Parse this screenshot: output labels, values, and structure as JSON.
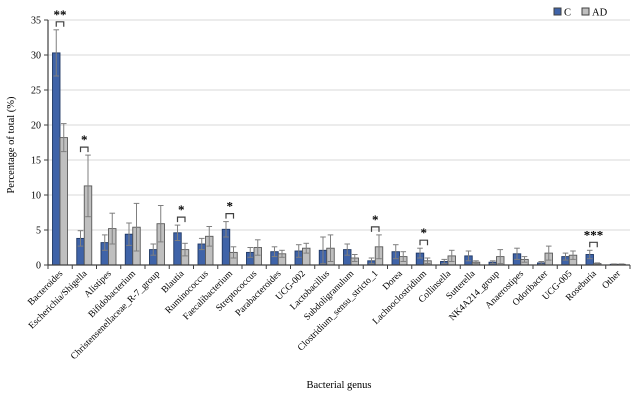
{
  "figure": {
    "background": "#ffffff",
    "gridline_color": "#d9d9d9",
    "axis_color": "#404040",
    "error_bar_color": "#7f7f7f",
    "bracket_color": "#404040"
  },
  "legend": {
    "items": [
      {
        "label": "C",
        "swatch_color": "#3f63a8"
      },
      {
        "label": "AD",
        "swatch_color": "#bfbfbf"
      }
    ],
    "position": "top-right"
  },
  "chart_data": {
    "type": "bar",
    "title": "",
    "xlabel": "Bacterial genus",
    "ylabel": "Percentage of total (%)",
    "ylim": [
      0,
      35
    ],
    "ytick_step": 5,
    "grid": true,
    "legend_position": "top-right",
    "categories": [
      "Bacteroides",
      "Escherichia/Shigella",
      "Alistipes",
      "Bifidobacterium",
      "Christensenellaceae_R-7_group",
      "Blautia",
      "Ruminococcus",
      "Faecalibacterium",
      "Streptococcus",
      "Parabacteroides",
      "UCG-002",
      "Lactobacillus",
      "Subdoligranulum",
      "Clostridium_sensu_stricto_1",
      "Dorea",
      "Lachnoclostridium",
      "Collinsella",
      "Sutterella",
      "NK4A214_group",
      "Anaerostipes",
      "Odoribacter",
      "UCG-005",
      "Roseburia",
      "Other"
    ],
    "series": [
      {
        "name": "C",
        "color": "#3f63a8",
        "border_color": "#1f3864",
        "values": [
          30.3,
          3.8,
          3.2,
          4.4,
          2.2,
          4.6,
          3.0,
          5.1,
          1.8,
          1.9,
          2.0,
          2.1,
          2.2,
          0.6,
          1.9,
          1.7,
          0.5,
          1.3,
          0.4,
          1.6,
          0.3,
          1.2,
          1.5,
          0.1
        ],
        "errors": [
          3.3,
          1.1,
          1.1,
          1.6,
          0.8,
          1.1,
          0.8,
          1.1,
          0.7,
          0.7,
          0.9,
          1.9,
          0.8,
          0.4,
          1.0,
          0.7,
          0.3,
          0.7,
          0.2,
          0.8,
          0.2,
          0.5,
          0.6,
          0.05
        ]
      },
      {
        "name": "AD",
        "color": "#bfbfbf",
        "border_color": "#595959",
        "values": [
          18.2,
          11.3,
          5.2,
          5.4,
          5.9,
          2.2,
          4.1,
          1.8,
          2.5,
          1.6,
          2.4,
          2.4,
          1.0,
          2.6,
          1.2,
          0.6,
          1.3,
          0.4,
          1.2,
          0.8,
          1.7,
          1.4,
          0.2,
          0.1
        ],
        "errors": [
          2.0,
          4.4,
          2.2,
          3.4,
          2.6,
          0.9,
          1.4,
          0.8,
          1.1,
          0.5,
          0.7,
          1.9,
          0.5,
          1.7,
          0.7,
          0.4,
          0.8,
          0.2,
          1.0,
          0.4,
          1.0,
          0.6,
          0.1,
          0.05
        ]
      }
    ],
    "significance": [
      {
        "category_index": 0,
        "label": "**"
      },
      {
        "category_index": 1,
        "label": "*"
      },
      {
        "category_index": 5,
        "label": "*"
      },
      {
        "category_index": 7,
        "label": "*"
      },
      {
        "category_index": 13,
        "label": "*"
      },
      {
        "category_index": 15,
        "label": "*"
      },
      {
        "category_index": 22,
        "label": "***"
      }
    ],
    "ytick_labels": [
      "0",
      "5",
      "10",
      "15",
      "20",
      "25",
      "30",
      "35"
    ]
  }
}
